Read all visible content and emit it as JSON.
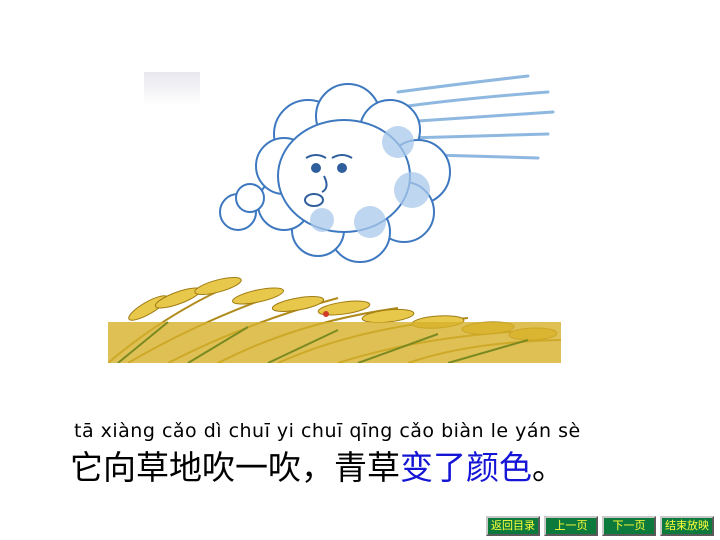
{
  "lesson": {
    "pinyin": "tā xiàng cǎo dì chuī yi chuī qīng cǎo biàn le yán sè",
    "sentence_plain": "它向草地吹一吹，青草",
    "sentence_highlight": "变了颜色",
    "sentence_end": "。"
  },
  "nav": {
    "back_to_menu": "返回目录",
    "prev_page": "上一页",
    "next_page": "下一页",
    "end_show": "结束放映"
  },
  "colors": {
    "highlight": "#1515d6",
    "button_bg": "#0c7a3c",
    "button_text": "#ffff3a"
  }
}
